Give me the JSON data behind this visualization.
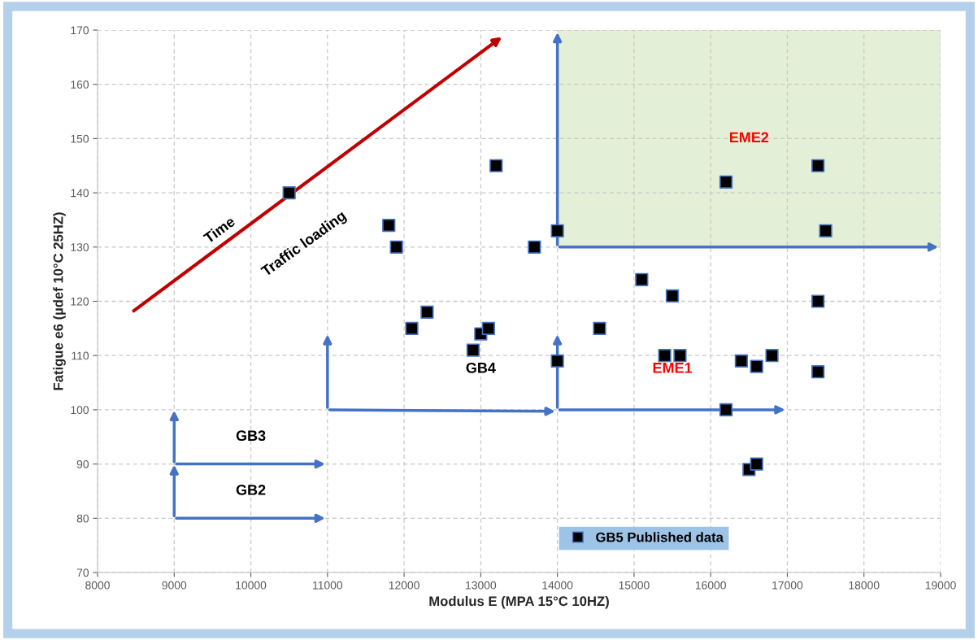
{
  "chart_data": {
    "type": "scatter",
    "xlabel": "Modulus E (MPA 15°C 10HZ)",
    "ylabel": "Fatigue e6 (µdef 10°C 25HZ)",
    "x": [
      10500,
      11800,
      11900,
      13200,
      14000,
      13700,
      12100,
      12300,
      12900,
      13000,
      13100,
      14000,
      14550,
      16200,
      17400,
      17500,
      15100,
      15500,
      17400,
      15400,
      15600,
      16400,
      16600,
      16800,
      17400,
      16200,
      16500,
      16600
    ],
    "series": [
      {
        "name": "GB5 Published data",
        "color": "#000000",
        "values": [
          140,
          134,
          130,
          145,
          133,
          130,
          115,
          118,
          111,
          114,
          115,
          109,
          115,
          142,
          145,
          133,
          124,
          121,
          120,
          110,
          110,
          109,
          108,
          110,
          107,
          100,
          89,
          90
        ]
      }
    ],
    "xlim": [
      8000,
      19000
    ],
    "xticks": [
      8000,
      9000,
      10000,
      11000,
      12000,
      13000,
      14000,
      15000,
      16000,
      17000,
      18000,
      19000
    ],
    "ylim": [
      70,
      170
    ],
    "yticks": [
      70,
      80,
      90,
      100,
      110,
      120,
      130,
      140,
      150,
      160,
      170
    ],
    "grid": true,
    "legend": "bottom right",
    "marker": "square",
    "annotations": [
      "Time",
      "Traffic loading",
      "GB2",
      "GB3",
      "GB4",
      "EME1",
      "EME2"
    ]
  }
}
